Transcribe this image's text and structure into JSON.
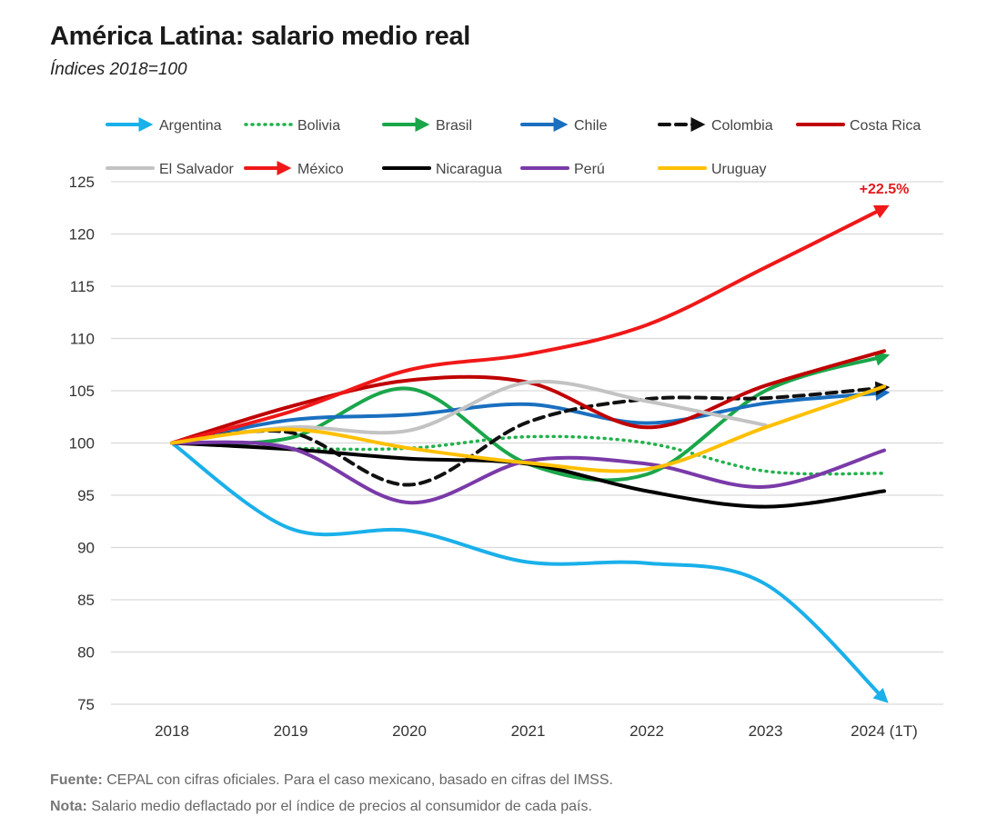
{
  "chart_data": {
    "type": "line",
    "title": "América Latina: salario medio real",
    "subtitle": "Índices 2018=100",
    "categories": [
      "2018",
      "2019",
      "2020",
      "2021",
      "2022",
      "2023",
      "2024 (1T)"
    ],
    "xlabel": "",
    "ylabel": "",
    "ylim": [
      75,
      125
    ],
    "yticks": [
      125,
      120,
      115,
      110,
      105,
      100,
      95,
      90,
      85,
      80,
      75
    ],
    "grid": true,
    "legend_position": "top",
    "series": [
      {
        "name": "Argentina",
        "color": "#1ab0ea",
        "style": "solid",
        "arrow": true,
        "values": [
          100,
          91.8,
          91.6,
          88.6,
          88.5,
          86.5,
          75.5
        ]
      },
      {
        "name": "Bolivia",
        "color": "#22b14c",
        "style": "dotted",
        "arrow": false,
        "values": [
          100,
          99.5,
          99.5,
          100.6,
          100.0,
          97.3,
          97.1
        ]
      },
      {
        "name": "Brasil",
        "color": "#1aa64a",
        "style": "solid",
        "arrow": true,
        "values": [
          100,
          100.5,
          105.2,
          98.0,
          97.0,
          105.0,
          108.3
        ]
      },
      {
        "name": "Chile",
        "color": "#1a6fbf",
        "style": "solid",
        "arrow": true,
        "values": [
          100,
          102.2,
          102.7,
          103.7,
          101.9,
          103.8,
          104.8
        ]
      },
      {
        "name": "Colombia",
        "color": "#111111",
        "style": "dashed",
        "arrow": true,
        "values": [
          100,
          101.0,
          96.0,
          102.0,
          104.2,
          104.3,
          105.3
        ]
      },
      {
        "name": "Costa Rica",
        "color": "#c00000",
        "style": "solid",
        "arrow": false,
        "values": [
          100,
          103.5,
          106.0,
          105.8,
          101.5,
          105.5,
          108.8
        ]
      },
      {
        "name": "El Salvador",
        "color": "#c3c3c3",
        "style": "solid",
        "arrow": false,
        "values": [
          100,
          101.5,
          101.2,
          105.8,
          104.0,
          101.7,
          null
        ]
      },
      {
        "name": "México",
        "color": "#f01818",
        "style": "solid",
        "arrow": true,
        "values": [
          100,
          103.0,
          107.0,
          108.5,
          111.3,
          116.8,
          122.5
        ]
      },
      {
        "name": "Nicaragua",
        "color": "#000000",
        "style": "solid",
        "arrow": false,
        "values": [
          100,
          99.4,
          98.5,
          98.0,
          95.4,
          93.9,
          95.4
        ]
      },
      {
        "name": "Perú",
        "color": "#7a3aa8",
        "style": "solid",
        "arrow": false,
        "values": [
          100,
          99.5,
          94.3,
          98.3,
          98.0,
          95.8,
          99.3
        ]
      },
      {
        "name": "Uruguay",
        "color": "#ffc000",
        "style": "solid",
        "arrow": false,
        "values": [
          100,
          101.3,
          99.5,
          98.1,
          97.5,
          101.5,
          105.4
        ]
      }
    ],
    "annotations": [
      {
        "series": "México",
        "category": "2024 (1T)",
        "text": "+22.5%"
      }
    ]
  },
  "footer": {
    "source_label": "Fuente:",
    "source_text": " CEPAL con cifras oficiales. Para el caso mexicano, basado en cifras del IMSS.",
    "note_label": "Nota:",
    "note_text": " Salario medio deflactado por el índice de precios al consumidor de cada país."
  }
}
